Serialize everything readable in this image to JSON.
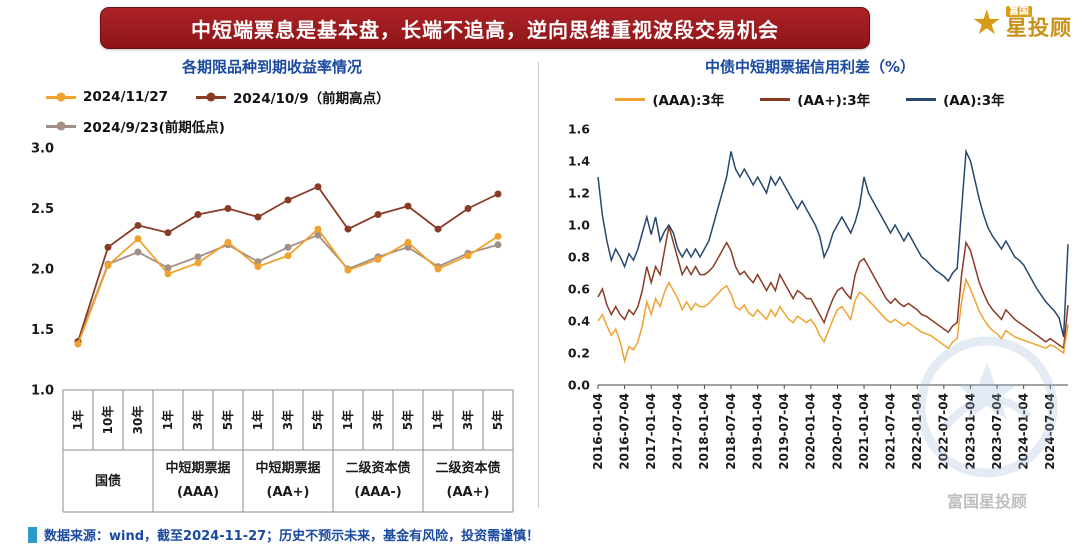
{
  "header": {
    "title": "中短端票息是基本盘，长端不追高，逆向思维重视波段交易机会"
  },
  "logo": {
    "brand_small": "富国",
    "brand_large": "星投顾",
    "watermark_text": "富国星投顾"
  },
  "footer": {
    "text": "数据来源：wind，截至2024-11-27；历史不预示未来，基金有风险，投资需谨慎！"
  },
  "colors": {
    "banner_bg": "#9A1B1F",
    "title_blue": "#1B4AA2",
    "footer_blue": "#1B4AA2",
    "accent_gold": "#C8921A",
    "series_orange": "#F0A22E",
    "series_darkred": "#8A3B25",
    "series_graybrown": "#A38F85",
    "series_navy": "#27486E",
    "table_line": "#8c8c8c",
    "watermark": "#9FBBDA"
  },
  "chart_data": [
    {
      "type": "line",
      "title": "各期限品种到期收益率情况",
      "ylim": [
        1.0,
        3.0
      ],
      "yticks": [
        1.0,
        1.5,
        2.0,
        2.5,
        3.0
      ],
      "categories": [
        "1年",
        "10年",
        "30年",
        "1年",
        "3年",
        "5年",
        "1年",
        "3年",
        "5年",
        "1年",
        "3年",
        "5年",
        "1年",
        "3年",
        "5年"
      ],
      "groups": [
        {
          "label": "国债",
          "sub": ""
        },
        {
          "label": "中短期票据",
          "sub": "(AAA)"
        },
        {
          "label": "中短期票据",
          "sub": "(AA+)"
        },
        {
          "label": "二级资本债",
          "sub": "(AAA-)"
        },
        {
          "label": "二级资本债",
          "sub": "(AA+)"
        }
      ],
      "series": [
        {
          "name": "2024/11/27",
          "color": "#F0A22E",
          "marker": true,
          "values": [
            1.38,
            2.03,
            2.25,
            1.96,
            2.05,
            2.22,
            2.02,
            2.11,
            2.33,
            1.99,
            2.08,
            2.22,
            2.0,
            2.11,
            2.27
          ]
        },
        {
          "name": "2024/10/9（前期高点）",
          "color": "#8A3B25",
          "marker": true,
          "values": [
            1.4,
            2.18,
            2.36,
            2.3,
            2.45,
            2.5,
            2.43,
            2.57,
            2.68,
            2.33,
            2.45,
            2.52,
            2.33,
            2.5,
            2.62
          ]
        },
        {
          "name": "2024/9/23(前期低点)",
          "color": "#A38F85",
          "marker": true,
          "values": [
            1.4,
            2.04,
            2.14,
            2.01,
            2.1,
            2.2,
            2.06,
            2.18,
            2.28,
            2.0,
            2.1,
            2.18,
            2.02,
            2.13,
            2.2
          ]
        }
      ]
    },
    {
      "type": "line",
      "title": "中债中短期票据信用利差（%）",
      "ylim": [
        0.0,
        1.6
      ],
      "yticks": [
        0.0,
        0.2,
        0.4,
        0.6,
        0.8,
        1.0,
        1.2,
        1.4,
        1.6
      ],
      "x_start": "2016-01",
      "x_freq": "monthly",
      "x_tick_labels": [
        "2016-01-04",
        "2016-07-04",
        "2017-01-04",
        "2017-07-04",
        "2018-01-04",
        "2018-07-04",
        "2019-01-04",
        "2019-07-04",
        "2020-01-04",
        "2020-07-04",
        "2021-01-04",
        "2021-07-04",
        "2022-01-04",
        "2022-07-04",
        "2023-01-04",
        "2023-07-04",
        "2024-01-04",
        "2024-07-04"
      ],
      "x_tick_indices": [
        0,
        6,
        12,
        18,
        24,
        30,
        36,
        42,
        48,
        54,
        60,
        66,
        72,
        78,
        84,
        90,
        96,
        102
      ],
      "series": [
        {
          "name": "(AAA):3年",
          "color": "#F0A22E",
          "marker": false,
          "values": [
            0.4,
            0.44,
            0.37,
            0.31,
            0.35,
            0.27,
            0.15,
            0.24,
            0.22,
            0.27,
            0.37,
            0.52,
            0.44,
            0.54,
            0.49,
            0.58,
            0.64,
            0.59,
            0.54,
            0.47,
            0.52,
            0.47,
            0.51,
            0.49,
            0.49,
            0.51,
            0.54,
            0.57,
            0.6,
            0.62,
            0.57,
            0.49,
            0.47,
            0.5,
            0.45,
            0.43,
            0.47,
            0.44,
            0.41,
            0.47,
            0.43,
            0.49,
            0.45,
            0.41,
            0.39,
            0.43,
            0.41,
            0.39,
            0.41,
            0.37,
            0.31,
            0.27,
            0.34,
            0.41,
            0.47,
            0.49,
            0.45,
            0.41,
            0.53,
            0.58,
            0.56,
            0.53,
            0.5,
            0.47,
            0.44,
            0.41,
            0.39,
            0.41,
            0.39,
            0.37,
            0.39,
            0.37,
            0.35,
            0.33,
            0.32,
            0.31,
            0.29,
            0.27,
            0.25,
            0.23,
            0.27,
            0.29,
            0.52,
            0.66,
            0.6,
            0.53,
            0.46,
            0.41,
            0.37,
            0.34,
            0.32,
            0.29,
            0.34,
            0.32,
            0.3,
            0.29,
            0.28,
            0.27,
            0.26,
            0.25,
            0.24,
            0.23,
            0.25,
            0.24,
            0.22,
            0.2,
            0.38
          ]
        },
        {
          "name": "(AA+):3年",
          "color": "#8A3B25",
          "marker": false,
          "values": [
            0.55,
            0.6,
            0.5,
            0.44,
            0.49,
            0.44,
            0.41,
            0.47,
            0.44,
            0.49,
            0.59,
            0.74,
            0.64,
            0.74,
            0.69,
            0.84,
            0.99,
            0.89,
            0.79,
            0.69,
            0.74,
            0.69,
            0.74,
            0.69,
            0.69,
            0.71,
            0.74,
            0.79,
            0.84,
            0.89,
            0.84,
            0.74,
            0.69,
            0.71,
            0.67,
            0.64,
            0.69,
            0.64,
            0.59,
            0.64,
            0.59,
            0.69,
            0.64,
            0.59,
            0.54,
            0.59,
            0.57,
            0.54,
            0.54,
            0.49,
            0.44,
            0.39,
            0.47,
            0.54,
            0.59,
            0.61,
            0.57,
            0.54,
            0.69,
            0.77,
            0.79,
            0.74,
            0.69,
            0.64,
            0.59,
            0.54,
            0.51,
            0.54,
            0.51,
            0.49,
            0.51,
            0.49,
            0.47,
            0.44,
            0.43,
            0.41,
            0.39,
            0.37,
            0.35,
            0.33,
            0.37,
            0.39,
            0.69,
            0.89,
            0.84,
            0.74,
            0.64,
            0.57,
            0.51,
            0.47,
            0.44,
            0.41,
            0.47,
            0.44,
            0.41,
            0.39,
            0.37,
            0.35,
            0.33,
            0.31,
            0.29,
            0.27,
            0.29,
            0.27,
            0.25,
            0.23,
            0.5
          ]
        },
        {
          "name": "(AA):3年",
          "color": "#27486E",
          "marker": false,
          "values": [
            1.3,
            1.06,
            0.9,
            0.78,
            0.85,
            0.8,
            0.74,
            0.82,
            0.78,
            0.85,
            0.95,
            1.05,
            0.94,
            1.05,
            0.9,
            0.96,
            1.0,
            0.95,
            0.85,
            0.8,
            0.85,
            0.8,
            0.85,
            0.8,
            0.85,
            0.9,
            1.0,
            1.1,
            1.2,
            1.3,
            1.46,
            1.35,
            1.3,
            1.35,
            1.3,
            1.25,
            1.3,
            1.25,
            1.2,
            1.3,
            1.25,
            1.3,
            1.25,
            1.2,
            1.15,
            1.1,
            1.15,
            1.1,
            1.05,
            1.0,
            0.93,
            0.8,
            0.86,
            0.95,
            1.0,
            1.05,
            1.0,
            0.95,
            1.02,
            1.12,
            1.3,
            1.2,
            1.15,
            1.1,
            1.05,
            1.0,
            0.95,
            1.0,
            0.95,
            0.9,
            0.95,
            0.9,
            0.85,
            0.8,
            0.78,
            0.75,
            0.72,
            0.7,
            0.68,
            0.65,
            0.7,
            0.73,
            1.1,
            1.46,
            1.4,
            1.28,
            1.16,
            1.06,
            0.98,
            0.93,
            0.89,
            0.85,
            0.9,
            0.85,
            0.8,
            0.78,
            0.75,
            0.7,
            0.65,
            0.6,
            0.56,
            0.52,
            0.49,
            0.46,
            0.42,
            0.3,
            0.88
          ]
        }
      ]
    }
  ]
}
